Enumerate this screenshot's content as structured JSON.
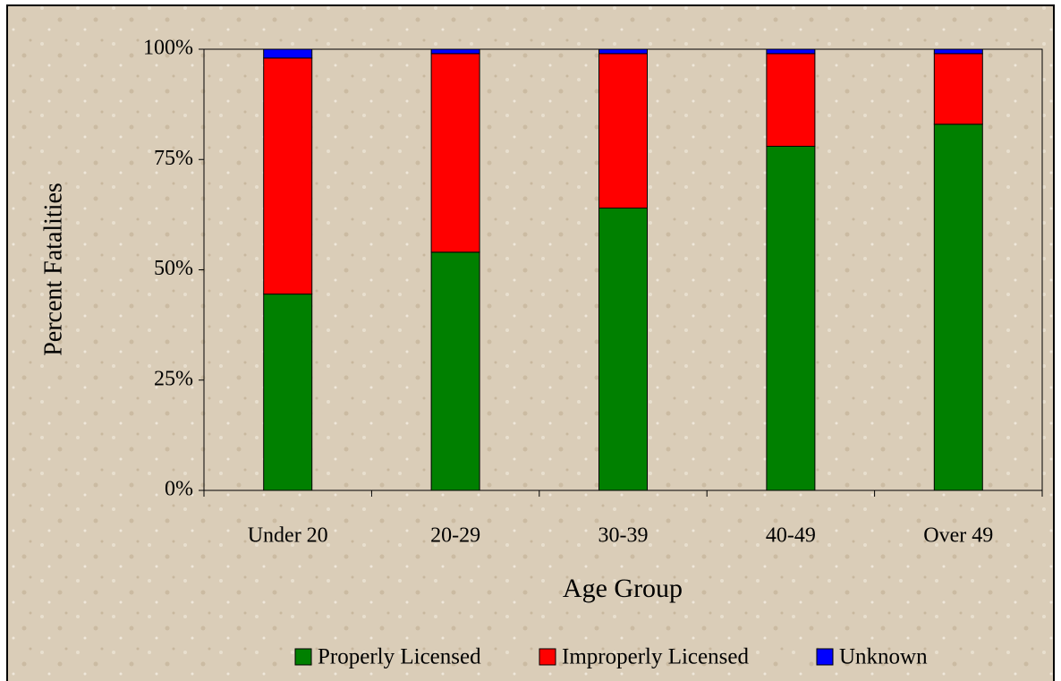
{
  "chart_data": {
    "type": "stacked_bar",
    "x_label": "Age Group",
    "y_label": "Percent Fatalities",
    "categories": [
      "Under 20",
      "20-29",
      "30-39",
      "40-49",
      "Over 49"
    ],
    "series": [
      {
        "name": "Properly Licensed",
        "color": "#008000",
        "values": [
          44.5,
          54,
          64,
          78,
          83
        ]
      },
      {
        "name": "Improperly Licensed",
        "color": "#ff0000",
        "values": [
          53.5,
          45,
          35,
          21,
          16
        ]
      },
      {
        "name": "Unknown",
        "color": "#0000ff",
        "values": [
          2,
          1,
          1,
          1,
          1
        ]
      }
    ],
    "ylim": [
      0,
      100
    ],
    "yticks": [
      {
        "value": 0,
        "label": "0%"
      },
      {
        "value": 25,
        "label": "25%"
      },
      {
        "value": 50,
        "label": "50%"
      },
      {
        "value": 75,
        "label": "75%"
      },
      {
        "value": 100,
        "label": "100%"
      }
    ],
    "legend": "bottom"
  }
}
